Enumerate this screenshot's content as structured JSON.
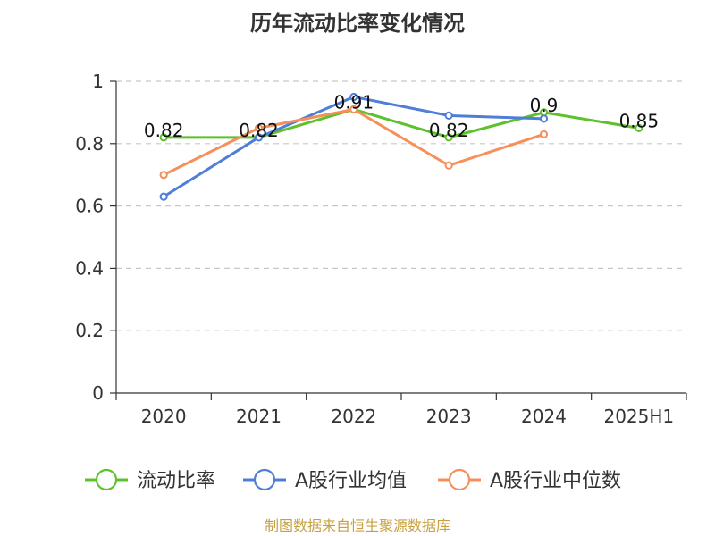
{
  "chart_data": {
    "type": "line",
    "title": "历年流动比率变化情况",
    "categories": [
      "2020",
      "2021",
      "2022",
      "2023",
      "2024",
      "2025H1"
    ],
    "ylim": [
      0,
      1
    ],
    "yticks": [
      0,
      0.2,
      0.4,
      0.6,
      0.8,
      1
    ],
    "ytick_labels": [
      "0",
      "0.2",
      "0.4",
      "0.6",
      "0.8",
      "1"
    ],
    "grid": true,
    "legend_position": "bottom",
    "series": [
      {
        "name": "流动比率",
        "color": "#5cc12b",
        "values": [
          0.82,
          0.82,
          0.91,
          0.82,
          0.9,
          0.85
        ],
        "labels": [
          "0.82",
          "0.82",
          "0.91",
          "0.82",
          "0.9",
          "0.85"
        ]
      },
      {
        "name": "A股行业均值",
        "color": "#4f7ed8",
        "values": [
          0.63,
          0.82,
          0.95,
          0.89,
          0.88,
          null
        ]
      },
      {
        "name": "A股行业中位数",
        "color": "#f68f5a",
        "values": [
          0.7,
          0.85,
          0.91,
          0.73,
          0.83,
          null
        ]
      }
    ],
    "source": "制图数据来自恒生聚源数据库"
  }
}
